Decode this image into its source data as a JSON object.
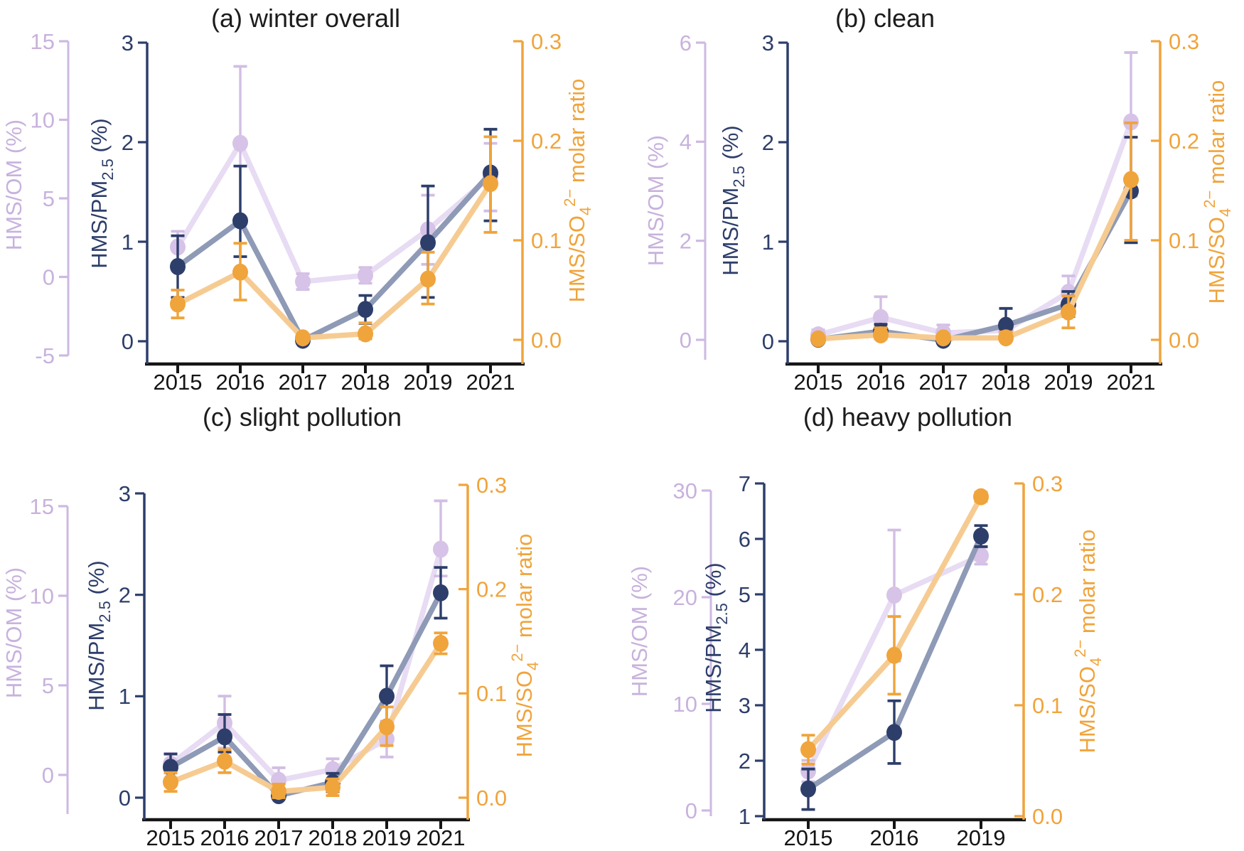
{
  "colors": {
    "navy": "#2d3e6a",
    "navy_line": "#8e9ab6",
    "orange": "#f0a43c",
    "orange_line": "#f6cb92",
    "lavender": "#d7c3e7",
    "lavender_err": "#d2bee4",
    "lavender_line": "#e7dcf3",
    "lavender_text": "#c8b2dd",
    "lavender_axis": "#cdb9e2",
    "axis_black": "#151515",
    "title_color": "#1c1c1c"
  },
  "chart_data": [
    {
      "id": "a",
      "type": "line",
      "title": "(a) winter overall",
      "categories": [
        "2015",
        "2016",
        "2017",
        "2018",
        "2019",
        "2021"
      ],
      "axes": {
        "om": {
          "label": "HMS/OM (%)",
          "label_parts": {
            "pre": "HMS/OM (%)"
          },
          "ticks": [
            "15",
            "10",
            "5",
            "0",
            "-5"
          ],
          "range": [
            -5,
            15
          ],
          "legend_position": "left-outer",
          "grid": false
        },
        "pm": {
          "label": "HMS/PM2.5 (%)",
          "label_parts": {
            "pre": "HMS/PM",
            "sub": "2.5",
            "post": " (%)"
          },
          "ticks": [
            "3",
            "2",
            "1",
            "0"
          ],
          "range": [
            0,
            3
          ],
          "legend_position": "left-inner",
          "grid": false
        },
        "so4": {
          "label": "HMS/SO42− molar ratio",
          "label_parts": {
            "pre": "HMS/SO",
            "sub": "4",
            "sup": "2−",
            "post": " molar ratio"
          },
          "ticks": [
            "0.3",
            "0.2",
            "0.1",
            "0.0"
          ],
          "range": [
            0,
            0.3
          ],
          "legend_position": "right",
          "grid": false
        }
      },
      "series": {
        "om": {
          "name": "HMS/OM",
          "values": [
            1.9,
            8.5,
            -0.3,
            0.1,
            3.0,
            6.4
          ],
          "err_lo": [
            0.9,
            3.5,
            -0.8,
            -0.4,
            0.8,
            4.2
          ],
          "err_hi": [
            2.9,
            13.4,
            0.2,
            0.6,
            5.2,
            8.5
          ]
        },
        "pm": {
          "name": "HMS/PM2.5",
          "values": [
            0.75,
            1.21,
            0.01,
            0.32,
            0.99,
            1.69
          ],
          "err_lo": [
            0.44,
            0.85,
            0.0,
            0.18,
            0.44,
            1.21
          ],
          "err_hi": [
            1.06,
            1.76,
            0.04,
            0.46,
            1.56,
            2.13
          ]
        },
        "so4": {
          "name": "HMS/SO42−",
          "values": [
            0.036,
            0.068,
            0.002,
            0.006,
            0.061,
            0.157
          ],
          "err_lo": [
            0.022,
            0.04,
            0.0,
            0.001,
            0.036,
            0.108
          ],
          "err_hi": [
            0.05,
            0.097,
            0.005,
            0.017,
            0.088,
            0.204
          ]
        }
      }
    },
    {
      "id": "b",
      "type": "line",
      "title": "(b) clean",
      "categories": [
        "2015",
        "2016",
        "2017",
        "2018",
        "2019",
        "2021"
      ],
      "axes": {
        "om": {
          "label": "HMS/OM (%)",
          "label_parts": {
            "pre": "HMS/OM (%)"
          },
          "ticks": [
            "6",
            "4",
            "2",
            "0"
          ],
          "range": [
            0,
            6
          ],
          "legend_position": "left-outer",
          "grid": false
        },
        "pm": {
          "label": "HMS/PM2.5 (%)",
          "label_parts": {
            "pre": "HMS/PM",
            "sub": "2.5",
            "post": " (%)"
          },
          "ticks": [
            "3",
            "2",
            "1",
            "0"
          ],
          "range": [
            0,
            3
          ],
          "legend_position": "left-inner",
          "grid": false
        },
        "so4": {
          "label": "HMS/SO42− molar ratio",
          "label_parts": {
            "pre": "HMS/SO",
            "sub": "4",
            "sup": "2−",
            "post": " molar ratio"
          },
          "ticks": [
            "0.3",
            "0.2",
            "0.1",
            "0.0"
          ],
          "range": [
            0,
            0.3
          ],
          "legend_position": "right",
          "grid": false
        }
      },
      "series": {
        "om": {
          "name": "HMS/OM",
          "values": [
            0.1,
            0.45,
            0.14,
            0.19,
            0.96,
            4.4
          ],
          "err_lo": [
            0.02,
            0.1,
            0.02,
            0.05,
            0.64,
            2.9
          ],
          "err_hi": [
            0.2,
            0.87,
            0.3,
            0.35,
            1.29,
            5.8
          ]
        },
        "pm": {
          "name": "HMS/PM2.5",
          "values": [
            0.02,
            0.1,
            0.01,
            0.16,
            0.37,
            1.51
          ],
          "err_lo": [
            0.0,
            0.03,
            0.0,
            0.05,
            0.25,
            0.99
          ],
          "err_hi": [
            0.05,
            0.17,
            0.04,
            0.33,
            0.5,
            2.05
          ]
        },
        "so4": {
          "name": "HMS/SO42−",
          "values": [
            0.001,
            0.005,
            0.002,
            0.002,
            0.028,
            0.161
          ],
          "err_lo": [
            0.0,
            0.001,
            0.0,
            0.0,
            0.012,
            0.1
          ],
          "err_hi": [
            0.004,
            0.012,
            0.005,
            0.008,
            0.044,
            0.218
          ]
        }
      }
    },
    {
      "id": "c",
      "type": "line",
      "title": "(c) slight pollution",
      "categories": [
        "2015",
        "2016",
        "2017",
        "2018",
        "2019",
        "2021"
      ],
      "axes": {
        "om": {
          "label": "HMS/OM (%)",
          "label_parts": {
            "pre": "HMS/OM (%)"
          },
          "ticks": [
            "15",
            "10",
            "5",
            "0"
          ],
          "range": [
            0,
            15
          ],
          "legend_position": "left-outer",
          "grid": false
        },
        "pm": {
          "label": "HMS/PM2.5 (%)",
          "label_parts": {
            "pre": "HMS/PM",
            "sub": "2.5",
            "post": " (%)"
          },
          "ticks": [
            "3",
            "2",
            "1",
            "0"
          ],
          "range": [
            0,
            3
          ],
          "legend_position": "left-inner",
          "grid": false
        },
        "so4": {
          "label": "HMS/SO42− molar ratio",
          "label_parts": {
            "pre": "HMS/SO",
            "sub": "4",
            "sup": "2−",
            "post": " molar ratio"
          },
          "ticks": [
            "0.3",
            "0.2",
            "0.1",
            "0.0"
          ],
          "range": [
            0,
            0.3
          ],
          "legend_position": "right",
          "grid": false
        }
      },
      "series": {
        "om": {
          "name": "HMS/OM",
          "values": [
            0.6,
            2.9,
            -0.3,
            0.3,
            2.0,
            12.6
          ],
          "err_lo": [
            0.1,
            1.5,
            -0.9,
            -0.2,
            1.0,
            11.1
          ],
          "err_hi": [
            1.2,
            4.4,
            0.4,
            0.9,
            3.0,
            15.3
          ]
        },
        "pm": {
          "name": "HMS/PM2.5",
          "values": [
            0.3,
            0.6,
            0.02,
            0.15,
            1.0,
            2.02
          ],
          "err_lo": [
            0.18,
            0.45,
            0.0,
            0.06,
            0.73,
            1.77
          ],
          "err_hi": [
            0.43,
            0.82,
            0.06,
            0.24,
            1.3,
            2.27
          ]
        },
        "so4": {
          "name": "HMS/SO42−",
          "values": [
            0.015,
            0.035,
            0.006,
            0.01,
            0.068,
            0.148
          ],
          "err_lo": [
            0.006,
            0.024,
            0.0,
            0.002,
            0.05,
            0.138
          ],
          "err_hi": [
            0.024,
            0.046,
            0.013,
            0.018,
            0.087,
            0.158
          ]
        }
      }
    },
    {
      "id": "d",
      "type": "line",
      "title": "(d) heavy pollution",
      "categories": [
        "2015",
        "2016",
        "2019"
      ],
      "axes": {
        "om": {
          "label": "HMS/OM (%)",
          "label_parts": {
            "pre": "HMS/OM (%)"
          },
          "ticks": [
            "30",
            "20",
            "10",
            "0"
          ],
          "range": [
            0,
            30
          ],
          "legend_position": "left-outer",
          "grid": false
        },
        "pm": {
          "label": "HMS/PM2.5 (%)",
          "label_parts": {
            "pre": "HMS/PM",
            "sub": "2.5",
            "post": " (%)"
          },
          "ticks": [
            "7",
            "6",
            "5",
            "4",
            "3",
            "2",
            "1"
          ],
          "range": [
            1,
            7
          ],
          "legend_position": "left-inner",
          "grid": false
        },
        "so4": {
          "label": "HMS/SO42− molar ratio",
          "label_parts": {
            "pre": "HMS/SO",
            "sub": "4",
            "sup": "2−",
            "post": " molar ratio"
          },
          "ticks": [
            "0.3",
            "0.2",
            "0.1",
            "0.0"
          ],
          "range": [
            0,
            0.3
          ],
          "legend_position": "right",
          "grid": false
        }
      },
      "series": {
        "om": {
          "name": "HMS/OM",
          "values": [
            3.7,
            20.2,
            23.9
          ],
          "err_lo": [
            2.7,
            14.0,
            23.1
          ],
          "err_hi": [
            4.7,
            26.3,
            24.7
          ]
        },
        "pm": {
          "name": "HMS/PM2.5",
          "values": [
            1.49,
            2.51,
            6.05
          ],
          "err_lo": [
            1.12,
            1.95,
            5.86
          ],
          "err_hi": [
            1.85,
            3.08,
            6.24
          ]
        },
        "so4": {
          "name": "HMS/SO42−",
          "values": [
            0.06,
            0.145,
            0.288
          ],
          "err_lo": [
            0.047,
            0.11,
            0.284
          ],
          "err_hi": [
            0.073,
            0.18,
            0.292
          ]
        }
      }
    }
  ]
}
